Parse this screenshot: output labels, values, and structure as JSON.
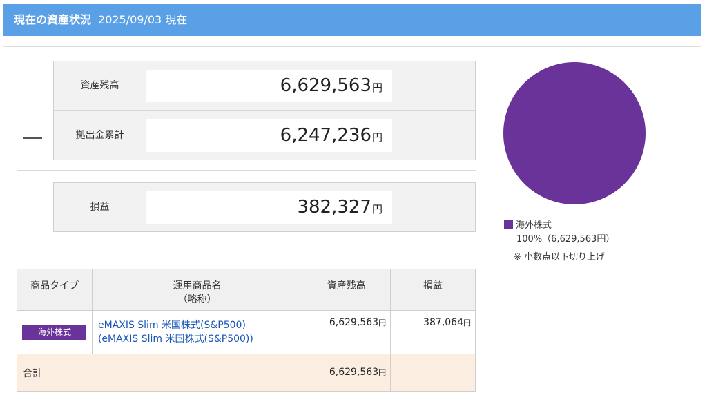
{
  "header": {
    "title": "現在の資産状況",
    "date": "2025/09/03 現在"
  },
  "summary": {
    "balance_label": "資産残高",
    "balance_value": "6,629,563",
    "contribution_label": "拠出金累計",
    "contribution_value": "6,247,236",
    "profit_label": "損益",
    "profit_value": "382,327",
    "unit": "円"
  },
  "pie": {
    "color": "#6a3399",
    "legend_label": "海外株式",
    "legend_pct": "100%（6,629,563円）",
    "note": "※ 小数点以下切り上げ"
  },
  "chart_data": {
    "type": "pie",
    "slices": [
      {
        "label": "海外株式",
        "value": 100,
        "color": "#6a3399"
      }
    ]
  },
  "table": {
    "headers": {
      "type": "商品タイプ",
      "name_line1": "運用商品名",
      "name_line2": "（略称）",
      "balance": "資産残高",
      "profit": "損益"
    },
    "rows": [
      {
        "type_tag": "海外株式",
        "name_line1": "eMAXIS Slim 米国株式(S&P500)",
        "name_line2": "(eMAXIS Slim 米国株式(S&P500))",
        "balance": "6,629,563",
        "profit": "387,064"
      }
    ],
    "total": {
      "label": "合計",
      "balance": "6,629,563"
    },
    "unit": "円"
  }
}
